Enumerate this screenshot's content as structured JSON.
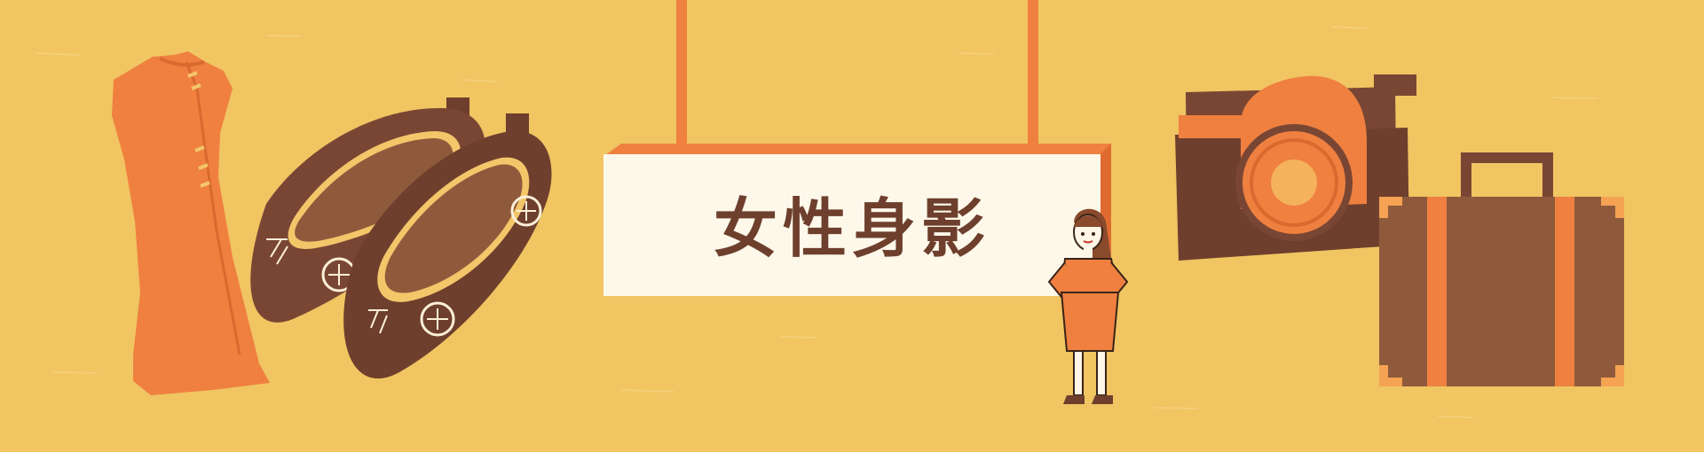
{
  "banner": {
    "title": "女性身影"
  },
  "colors": {
    "background": "#f0c562",
    "orange": "#ef8040",
    "brown": "#7a4634",
    "brown_light": "#8f5a3c",
    "sign_fill": "#fdf8ea",
    "tan": "#f3c66a",
    "title_text": "#6e3f2d"
  },
  "illustrations": [
    "qipao-dress-icon",
    "embroidered-shoes-icon",
    "hanging-sign",
    "woman-figure",
    "camera-icon",
    "suitcase-icon"
  ]
}
